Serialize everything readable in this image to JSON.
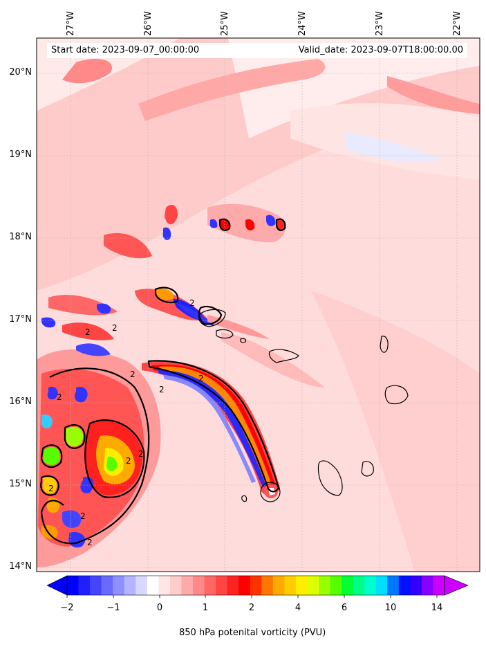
{
  "map": {
    "start_label": "Start date: 2023-09-07_00:00:00",
    "valid_label": "Valid_date: 2023-09-07T18:00:00.00",
    "lon_ticks": [
      "27°W",
      "26°W",
      "25°W",
      "24°W",
      "23°W",
      "22°W"
    ],
    "lat_ticks": [
      "20°N",
      "19°N",
      "18°N",
      "17°N",
      "16°N",
      "15°N",
      "14°N"
    ],
    "contour_label": "2",
    "contour_level": 2,
    "units": "PVU"
  },
  "colorbar": {
    "title": "850 hPa potenital vorticity (PVU)",
    "tick_labels": [
      "−2",
      "−1",
      "0",
      "1",
      "2",
      "4",
      "6",
      "10",
      "14"
    ],
    "colors": [
      "#0000ff",
      "#2020ff",
      "#4545ff",
      "#6a6aff",
      "#8f8fff",
      "#b4b4ff",
      "#d8d8ff",
      "#ffffff",
      "#ffe6e6",
      "#ffcccc",
      "#ffaaaa",
      "#ff8888",
      "#ff6666",
      "#ff4444",
      "#ff2222",
      "#ff0000",
      "#ff3300",
      "#ff7700",
      "#ffaa00",
      "#ffcc00",
      "#ffee00",
      "#ddff00",
      "#99ff00",
      "#55ff00",
      "#00ff33",
      "#00ff88",
      "#00ffcc",
      "#00ddff",
      "#0077ff",
      "#0011ff",
      "#3300ff",
      "#8800ff",
      "#cc00ff"
    ]
  },
  "colors": {
    "background_field": "#ffdede",
    "negative": "#3333ff",
    "positive": "#ff2222",
    "core": "#ff8800"
  }
}
